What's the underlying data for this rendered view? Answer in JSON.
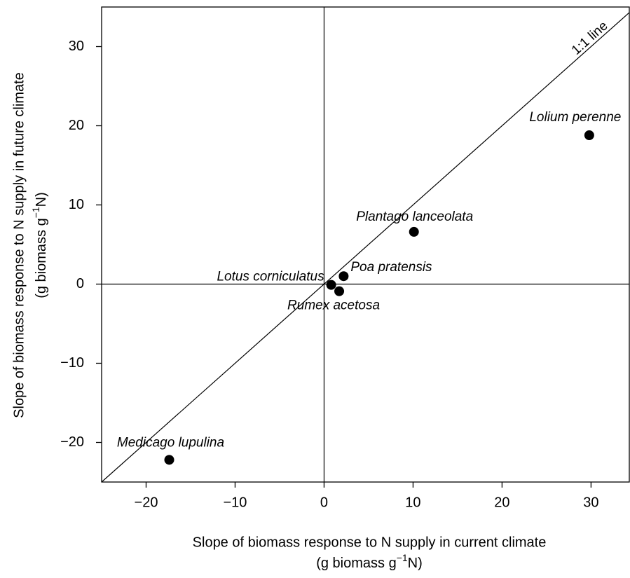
{
  "chart_data": {
    "type": "scatter",
    "x_label": {
      "line1": "Slope of biomass response to N supply in current climate",
      "unit_pre": "(g biomass g",
      "unit_sup": "−1",
      "unit_post": "N)"
    },
    "y_label": {
      "line1": "Slope of biomass response to N supply in future climate",
      "unit_pre": "(g biomass g",
      "unit_sup": "−1",
      "unit_post": "N)"
    },
    "x": [
      29.8,
      10.1,
      2.2,
      0.8,
      1.7,
      -17.4
    ],
    "values": [
      18.8,
      6.6,
      1.0,
      -0.1,
      -0.9,
      -22.2
    ],
    "labels": [
      "Lolium perenne",
      "Plantago lanceolata",
      "Poa pratensis",
      "Lotus corniculatus",
      "Rumex acetosa",
      "Medicago lupulina"
    ],
    "color": "#000000",
    "reference_line": {
      "label": "1:1 line"
    },
    "zero_lines": true,
    "xlim": [
      -25,
      34.3
    ],
    "ylim": [
      -25,
      35
    ],
    "xticks": [
      {
        "value": -20,
        "label": "−20"
      },
      {
        "value": -10,
        "label": "−10"
      },
      0,
      10,
      20,
      30
    ],
    "yticks": [
      {
        "value": -20,
        "label": "−20"
      },
      {
        "value": -10,
        "label": "−10"
      },
      0,
      10,
      20,
      30
    ]
  }
}
